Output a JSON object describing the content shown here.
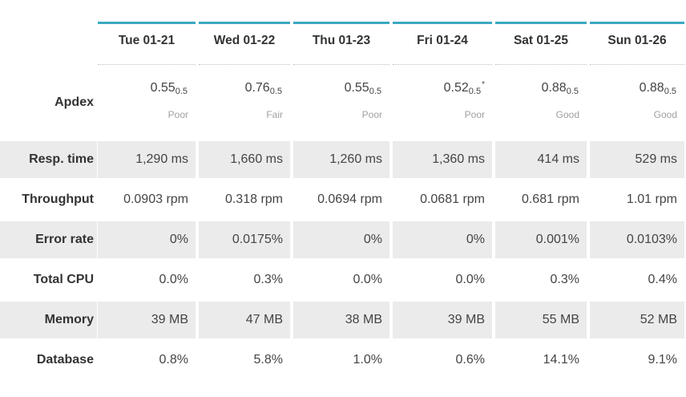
{
  "columns": [
    "Tue 01-21",
    "Wed 01-22",
    "Thu 01-23",
    "Fri 01-24",
    "Sat 01-25",
    "Sun 01-26"
  ],
  "apdex": {
    "label": "Apdex",
    "threshold": "0.5",
    "cells": [
      {
        "score": "0.55",
        "marker": "",
        "rating": "Poor"
      },
      {
        "score": "0.76",
        "marker": "",
        "rating": "Fair"
      },
      {
        "score": "0.55",
        "marker": "",
        "rating": "Poor"
      },
      {
        "score": "0.52",
        "marker": "*",
        "rating": "Poor"
      },
      {
        "score": "0.88",
        "marker": "",
        "rating": "Good"
      },
      {
        "score": "0.88",
        "marker": "",
        "rating": "Good"
      }
    ]
  },
  "rows": [
    {
      "label": "Resp. time",
      "values": [
        "1,290 ms",
        "1,660 ms",
        "1,260 ms",
        "1,360 ms",
        "414 ms",
        "529 ms"
      ]
    },
    {
      "label": "Throughput",
      "values": [
        "0.0903 rpm",
        "0.318 rpm",
        "0.0694 rpm",
        "0.0681 rpm",
        "0.681 rpm",
        "1.01 rpm"
      ]
    },
    {
      "label": "Error rate",
      "values": [
        "0%",
        "0.0175%",
        "0%",
        "0%",
        "0.001%",
        "0.0103%"
      ]
    },
    {
      "label": "Total CPU",
      "values": [
        "0.0%",
        "0.3%",
        "0.0%",
        "0.0%",
        "0.3%",
        "0.4%"
      ]
    },
    {
      "label": "Memory",
      "values": [
        "39 MB",
        "47 MB",
        "38 MB",
        "39 MB",
        "55 MB",
        "52 MB"
      ]
    },
    {
      "label": "Database",
      "values": [
        "0.8%",
        "5.8%",
        "1.0%",
        "0.6%",
        "14.1%",
        "9.1%"
      ]
    }
  ],
  "colors": {
    "accent": "#3aa9c1",
    "row_shade": "#ebebeb",
    "rating_text": "#a0a0a0"
  }
}
